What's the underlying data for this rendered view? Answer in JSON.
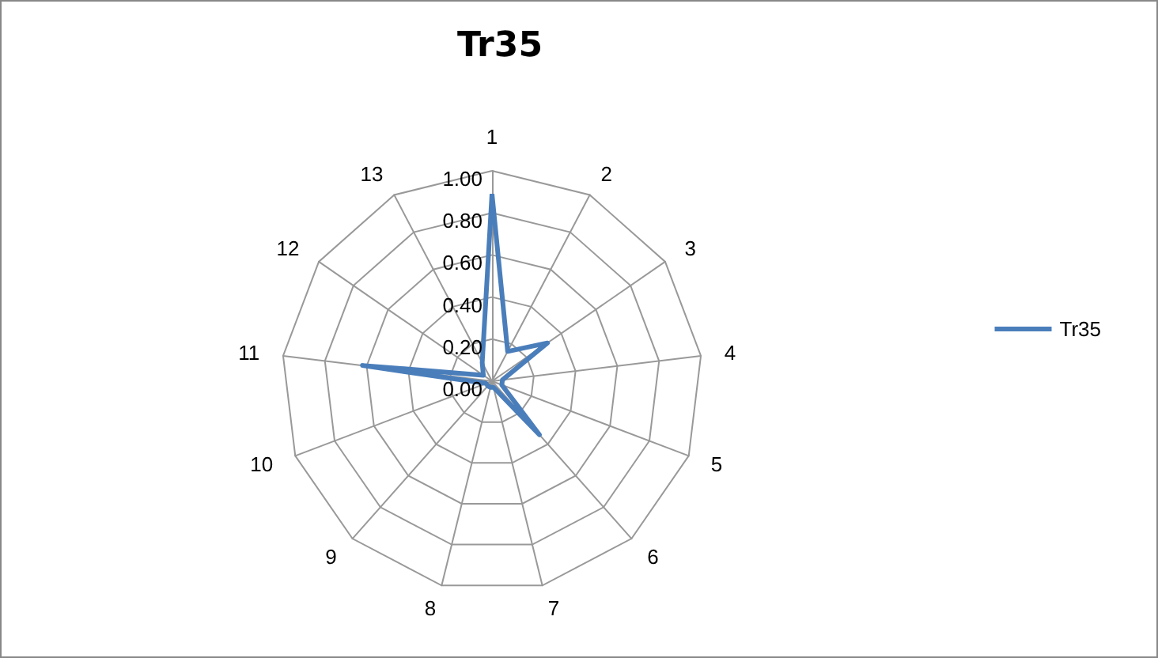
{
  "chart_data": {
    "type": "radar",
    "title": "Tr35",
    "categories": [
      "1",
      "2",
      "3",
      "4",
      "5",
      "6",
      "7",
      "8",
      "9",
      "10",
      "11",
      "12",
      "13"
    ],
    "series": [
      {
        "name": "Tr35",
        "color": "#4a7ebb",
        "values": [
          0.89,
          0.16,
          0.32,
          0.05,
          0.05,
          0.34,
          0.03,
          0.03,
          0.03,
          0.03,
          0.62,
          0.05,
          0.1
        ]
      }
    ],
    "ylim": [
      0,
      1
    ],
    "yticks": [
      {
        "value": 0,
        "label": "0.00"
      },
      {
        "value": 0.2,
        "label": "0.20"
      },
      {
        "value": 0.4,
        "label": "0.40"
      },
      {
        "value": 0.6,
        "label": "0.60"
      },
      {
        "value": 0.8,
        "label": "0.80"
      },
      {
        "value": 1,
        "label": "1.00"
      }
    ],
    "legend": "right",
    "marker": "none",
    "line_style": "solid"
  }
}
